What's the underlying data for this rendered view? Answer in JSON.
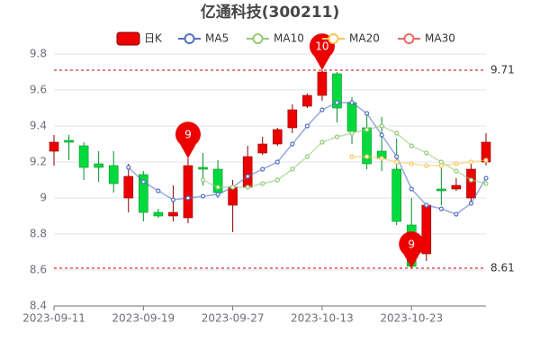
{
  "chart_data": {
    "type": "candlestick",
    "title": "亿通科技(300211)",
    "categories": [
      "2023-09-11",
      null,
      null,
      null,
      null,
      null,
      "2023-09-19",
      null,
      null,
      null,
      null,
      null,
      "2023-09-27",
      null,
      null,
      null,
      null,
      null,
      "2023-10-13",
      null,
      null,
      null,
      null,
      null,
      "2023-10-23",
      null,
      null,
      null,
      null,
      null
    ],
    "candles": {
      "name": "日K",
      "up_color": "#ec0000",
      "down_color": "#00da3c",
      "open": [
        9.26,
        9.32,
        9.29,
        9.19,
        9.18,
        9.0,
        9.13,
        8.92,
        8.9,
        8.89,
        9.17,
        9.16,
        8.96,
        9.06,
        9.25,
        9.3,
        9.39,
        9.51,
        9.57,
        9.69,
        9.53,
        9.39,
        9.26,
        9.16,
        8.85,
        8.69,
        9.05,
        9.05,
        9.0,
        9.2
      ],
      "close": [
        9.31,
        9.31,
        9.17,
        9.17,
        9.08,
        9.12,
        8.92,
        8.9,
        8.92,
        9.18,
        9.16,
        9.03,
        9.06,
        9.23,
        9.3,
        9.38,
        9.49,
        9.57,
        9.7,
        9.5,
        9.37,
        9.19,
        9.22,
        8.87,
        8.62,
        8.96,
        9.04,
        9.07,
        9.16,
        9.31
      ],
      "high": [
        9.35,
        9.35,
        9.31,
        9.26,
        9.26,
        9.19,
        9.15,
        8.94,
        9.07,
        9.22,
        9.25,
        9.21,
        9.1,
        9.29,
        9.34,
        9.39,
        9.52,
        9.58,
        9.71,
        9.7,
        9.56,
        9.46,
        9.45,
        9.33,
        9.0,
        8.97,
        9.19,
        9.11,
        9.2,
        9.36
      ],
      "low": [
        9.18,
        9.21,
        9.1,
        9.09,
        9.03,
        8.92,
        8.87,
        8.89,
        8.87,
        8.86,
        9.07,
        9.0,
        8.81,
        9.05,
        9.24,
        9.29,
        9.36,
        9.5,
        9.54,
        9.42,
        9.3,
        9.16,
        9.15,
        8.85,
        8.61,
        8.65,
        8.96,
        9.04,
        8.97,
        9.18
      ]
    },
    "series": [
      {
        "name": "MA5",
        "color": "#5470c6",
        "values": [
          null,
          null,
          null,
          null,
          null,
          9.17,
          9.09,
          9.04,
          8.99,
          9.0,
          9.01,
          9.02,
          9.06,
          9.12,
          9.16,
          9.2,
          9.3,
          9.4,
          9.49,
          9.53,
          9.53,
          9.47,
          9.35,
          9.23,
          9.05,
          8.96,
          8.94,
          8.91,
          8.97,
          9.11
        ]
      },
      {
        "name": "MA10",
        "color": "#91cc75",
        "values": [
          null,
          null,
          null,
          null,
          null,
          null,
          null,
          null,
          null,
          null,
          9.1,
          9.06,
          9.06,
          9.06,
          9.08,
          9.1,
          9.16,
          9.23,
          9.31,
          9.34,
          9.36,
          9.38,
          9.4,
          9.36,
          9.29,
          9.25,
          9.2,
          9.15,
          9.1,
          9.08
        ]
      },
      {
        "name": "MA20",
        "color": "#fac858",
        "values": [
          null,
          null,
          null,
          null,
          null,
          null,
          null,
          null,
          null,
          null,
          null,
          null,
          null,
          null,
          null,
          null,
          null,
          null,
          null,
          null,
          9.23,
          9.23,
          9.22,
          9.2,
          9.19,
          9.18,
          9.18,
          9.19,
          9.2,
          9.21
        ]
      },
      {
        "name": "MA30",
        "color": "#ee6666",
        "values": [
          null,
          null,
          null,
          null,
          null,
          null,
          null,
          null,
          null,
          null,
          null,
          null,
          null,
          null,
          null,
          null,
          null,
          null,
          null,
          null,
          null,
          null,
          null,
          null,
          null,
          null,
          null,
          null,
          null,
          null
        ]
      }
    ],
    "mark_points": [
      {
        "index": 9,
        "value": 9.22,
        "label": "9"
      },
      {
        "index": 18,
        "value": 9.71,
        "label": "10"
      },
      {
        "index": 24,
        "value": 8.61,
        "label": "9"
      }
    ],
    "mark_lines": [
      9.71,
      8.61
    ],
    "ylim": [
      8.4,
      9.8
    ],
    "yticks": [
      8.4,
      8.6,
      8.8,
      9,
      9.2,
      9.4,
      9.6,
      9.8
    ],
    "grid": true
  }
}
